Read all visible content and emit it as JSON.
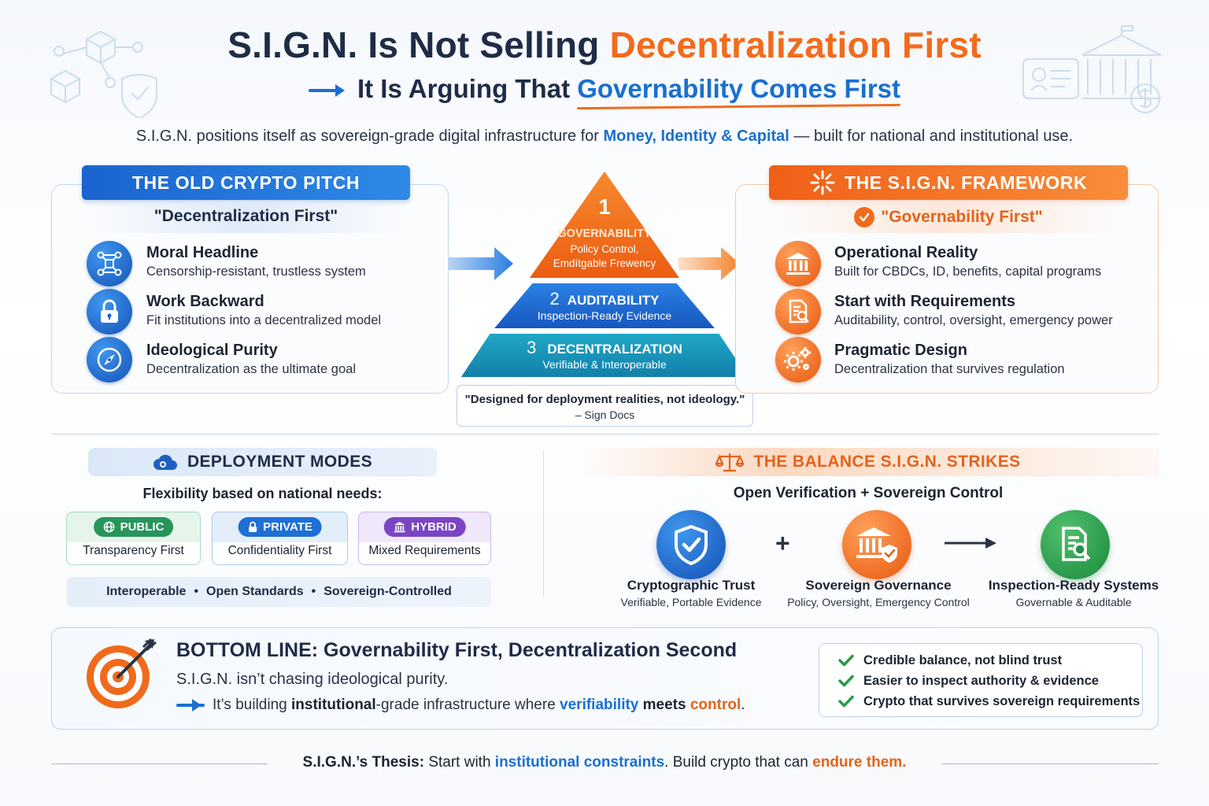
{
  "header": {
    "title_prefix": "S.I.G.N. Is Not Selling ",
    "title_highlight": "Decentralization First",
    "subtitle_prefix": "It Is Arguing That ",
    "subtitle_highlight": "Governability Comes First",
    "intro_prefix": "S.I.G.N. positions itself as sovereign-grade digital infrastructure for ",
    "intro_highlight": "Money, Identity & Capital",
    "intro_suffix": " — built for national and institutional use."
  },
  "old_pitch": {
    "banner": "THE OLD CRYPTO PITCH",
    "subtitle": "\"Decentralization First\"",
    "items": [
      {
        "icon": "network-icon",
        "title": "Moral Headline",
        "desc": "Censorship-resistant, trustless system"
      },
      {
        "icon": "lock-icon",
        "title": "Work Backward",
        "desc": "Fit institutions into a decentralized model"
      },
      {
        "icon": "compass-icon",
        "title": "Ideological Purity",
        "desc": "Decentralization as the ultimate goal"
      }
    ]
  },
  "pyramid": {
    "levels": [
      {
        "number": "1",
        "title": "GOVERNABILITY",
        "desc1": "Policy Control,",
        "desc2": "Emdítgable Frewency",
        "color": "#f06a1c"
      },
      {
        "number": "2",
        "title": "AUDITABILITY",
        "desc1": "Inspection-Ready Evidence",
        "color": "#1f6fd6"
      },
      {
        "number": "3",
        "title": "DECENTRALIZATION",
        "desc1": "Verifiable & Interoperable",
        "color": "#1796b8"
      }
    ],
    "quote": "\"Designed for deployment realities, not ideology.\"",
    "quote_source": "– Sign Docs"
  },
  "framework": {
    "banner": "THE S.I.G.N. FRAMEWORK",
    "subtitle": "\"Governability First\"",
    "items": [
      {
        "icon": "bank-icon",
        "title": "Operational Reality",
        "desc": "Built for CBDCs, ID, benefits, capital programs"
      },
      {
        "icon": "document-search-icon",
        "title": "Start with Requirements",
        "desc": "Auditability, control, oversight, emergency power"
      },
      {
        "icon": "gears-icon",
        "title": "Pragmatic Design",
        "desc": "Decentralization that survives regulation"
      }
    ]
  },
  "deployment": {
    "banner": "DEPLOYMENT MODES",
    "subtitle": "Flexibility based on national needs:",
    "modes": [
      {
        "label": "PUBLIC",
        "desc": "Transparency First",
        "color": "#27955a",
        "border": "#a9dcbd",
        "bg": "#e6f5ec"
      },
      {
        "label": "PRIVATE",
        "desc": "Confidentiality First",
        "color": "#1f6fd6",
        "border": "#a9c9ef",
        "bg": "#e4eefb"
      },
      {
        "label": "HYBRID",
        "desc": "Mixed Requirements",
        "color": "#7a45c4",
        "border": "#cdb7ec",
        "bg": "#efe7fa"
      }
    ],
    "standards": [
      "Interoperable",
      "Open Standards",
      "Sovereign-Controlled"
    ]
  },
  "balance": {
    "banner": "THE BALANCE S.I.G.N. STRIKES",
    "subtitle": "Open Verification + Sovereign Control",
    "items": [
      {
        "title": "Cryptographic Trust",
        "desc": "Verifiable, Portable Evidence"
      },
      {
        "title": "Sovereign Governance",
        "desc": "Policy, Oversight, Emergency Control"
      },
      {
        "title": "Inspection-Ready Systems",
        "desc": "Governable & Auditable"
      }
    ],
    "plus": "+"
  },
  "bottom_line": {
    "title": "BOTTOM LINE:  Governability First, Decentralization Second",
    "line1": "S.I.G.N. isn’t chasing ideological purity.",
    "line2_a": "It’s building ",
    "line2_b": "institutional",
    "line2_c": "-grade infrastructure where ",
    "line2_d": "verifiability",
    "line2_e": " meets ",
    "line2_f": "control",
    "line2_g": ".",
    "checks": [
      "Credible balance, not blind trust",
      "Easier to inspect authority & evidence",
      "Crypto that survives sovereign requirements"
    ]
  },
  "thesis": {
    "label": "S.I.G.N.’s Thesis:",
    "a": " Start with ",
    "b": "institutional constraints",
    "c": ". Build crypto that can ",
    "d": "endure them."
  }
}
